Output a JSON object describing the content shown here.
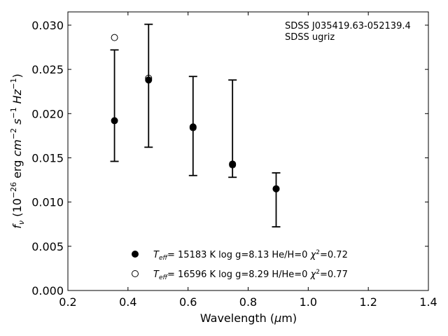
{
  "chart_data": {
    "type": "scatter",
    "title": "",
    "xlabel": "Wavelength (μm)",
    "ylabel": "f_ν (10^-26 erg cm^-2 s^-1 Hz^-1)",
    "xlim": [
      0.2,
      1.4
    ],
    "ylim": [
      0.0,
      0.0315
    ],
    "xticks": [
      0.2,
      0.4,
      0.6,
      0.8,
      1.0,
      1.2,
      1.4
    ],
    "xtick_labels": [
      "0.2",
      "0.4",
      "0.6",
      "0.8",
      "1.0",
      "1.2",
      "1.4"
    ],
    "yticks": [
      0.0,
      0.005,
      0.01,
      0.015,
      0.02,
      0.025,
      0.03
    ],
    "ytick_labels": [
      "0.000",
      "0.005",
      "0.010",
      "0.015",
      "0.020",
      "0.025",
      "0.030"
    ],
    "grid": false,
    "legend_position": "bottom-center",
    "annotations": [
      "SDSS J035419.63-052139.4",
      "SDSS ugriz"
    ],
    "observed": {
      "x": [
        0.3551,
        0.4686,
        0.6166,
        0.748,
        0.8932
      ],
      "y": [
        0.0192,
        0.0238,
        0.0185,
        0.0143,
        0.0115
      ],
      "err_low": [
        0.0146,
        0.0162,
        0.013,
        0.0128,
        0.0072
      ],
      "err_high": [
        0.0272,
        0.0301,
        0.0242,
        0.0238,
        0.0133
      ]
    },
    "series": [
      {
        "name": "T_eff= 15183 K  log g=8.13  He/H=0  χ²=0.72",
        "marker": "filled-circle",
        "color": "#000000",
        "x": [
          0.3551,
          0.4686,
          0.6166,
          0.748,
          0.8932
        ],
        "y": [
          0.0192,
          0.0238,
          0.0185,
          0.0143,
          0.0115
        ]
      },
      {
        "name": "T_eff= 16596 K  log g=8.29  H/He=0  χ²=0.77",
        "marker": "open-circle",
        "color": "#000000",
        "x": [
          0.3551,
          0.4686,
          0.6166,
          0.748,
          0.8932
        ],
        "y": [
          0.0286,
          0.024,
          0.0184,
          0.0142,
          0.0115
        ]
      }
    ]
  }
}
